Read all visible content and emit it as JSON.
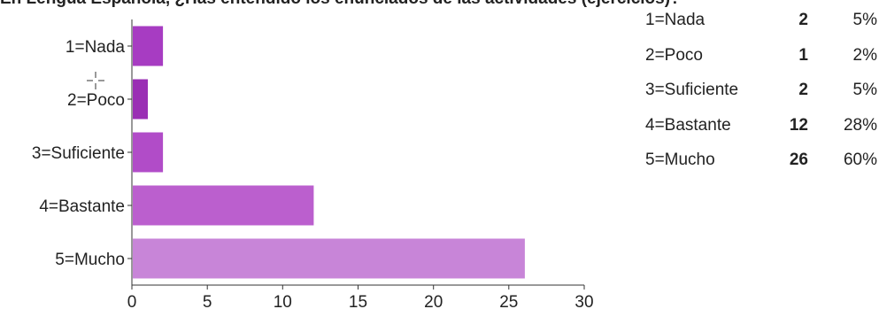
{
  "title": "En Lengua Española, ¿Has entendido los enunciados de las actividades (ejercicios)?",
  "colors": {
    "bars": [
      "#a73cc2",
      "#9a2fb4",
      "#b14cc8",
      "#bb5fce",
      "#c885d8"
    ],
    "axis": "#333333",
    "text": "#222222"
  },
  "chart_data": {
    "type": "bar",
    "orientation": "horizontal",
    "categories": [
      "1=Nada",
      "2=Poco",
      "3=Suficiente",
      "4=Bastante",
      "5=Mucho"
    ],
    "values": [
      2,
      1,
      2,
      12,
      26
    ],
    "xlim": [
      0,
      30
    ],
    "xticks": [
      0,
      5,
      10,
      15,
      20,
      25,
      30
    ],
    "grid": false
  },
  "summary": [
    {
      "label": "1=Nada",
      "count": "2",
      "percent": "5%"
    },
    {
      "label": "2=Poco",
      "count": "1",
      "percent": "2%"
    },
    {
      "label": "3=Suficiente",
      "count": "2",
      "percent": "5%"
    },
    {
      "label": "4=Bastante",
      "count": "12",
      "percent": "28%"
    },
    {
      "label": "5=Mucho",
      "count": "26",
      "percent": "60%"
    }
  ]
}
